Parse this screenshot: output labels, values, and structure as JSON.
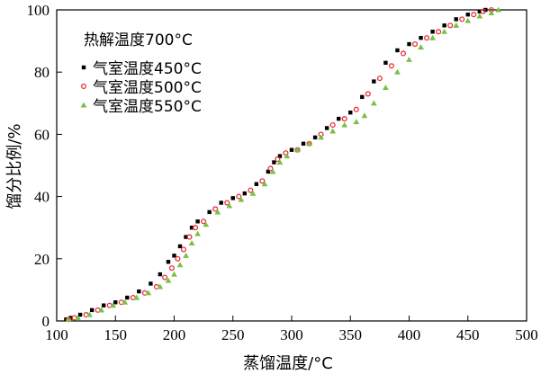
{
  "chart_data": {
    "type": "scatter",
    "title": "",
    "xlabel": "蒸馏温度/°C",
    "ylabel": "馏分比例/%",
    "xlim": [
      100,
      500
    ],
    "ylim": [
      0,
      100
    ],
    "xticks": [
      100,
      150,
      200,
      250,
      300,
      350,
      400,
      450,
      500
    ],
    "yticks": [
      0,
      20,
      40,
      60,
      80,
      100
    ],
    "grid": false,
    "legend_title": "热解温度700°C",
    "legend_position": "top-left",
    "series": [
      {
        "name": "气室温度450°C",
        "marker": "square",
        "color": "#000000",
        "points": [
          [
            108,
            0.5
          ],
          [
            112,
            1
          ],
          [
            120,
            2
          ],
          [
            130,
            3.5
          ],
          [
            140,
            5
          ],
          [
            150,
            6
          ],
          [
            160,
            7.5
          ],
          [
            170,
            9.5
          ],
          [
            180,
            12
          ],
          [
            188,
            15
          ],
          [
            195,
            19
          ],
          [
            200,
            21
          ],
          [
            205,
            24
          ],
          [
            210,
            27
          ],
          [
            215,
            30
          ],
          [
            220,
            32
          ],
          [
            230,
            35
          ],
          [
            240,
            38
          ],
          [
            250,
            39.5
          ],
          [
            260,
            41
          ],
          [
            270,
            44
          ],
          [
            280,
            48
          ],
          [
            285,
            51
          ],
          [
            290,
            53
          ],
          [
            300,
            55
          ],
          [
            310,
            57
          ],
          [
            320,
            59
          ],
          [
            330,
            62
          ],
          [
            340,
            65
          ],
          [
            350,
            67
          ],
          [
            360,
            72
          ],
          [
            370,
            77
          ],
          [
            380,
            83
          ],
          [
            390,
            87
          ],
          [
            400,
            89
          ],
          [
            410,
            91
          ],
          [
            420,
            93
          ],
          [
            430,
            95
          ],
          [
            440,
            97
          ],
          [
            450,
            98.5
          ],
          [
            460,
            99.5
          ],
          [
            465,
            100
          ]
        ]
      },
      {
        "name": "气室温度500°C",
        "marker": "circle",
        "color": "#e8303a",
        "points": [
          [
            110,
            0.5
          ],
          [
            115,
            1
          ],
          [
            125,
            2
          ],
          [
            135,
            3.5
          ],
          [
            145,
            5
          ],
          [
            155,
            6
          ],
          [
            165,
            7.5
          ],
          [
            175,
            9
          ],
          [
            185,
            11
          ],
          [
            192,
            14
          ],
          [
            198,
            17
          ],
          [
            203,
            20
          ],
          [
            208,
            23
          ],
          [
            213,
            27
          ],
          [
            218,
            30
          ],
          [
            225,
            32
          ],
          [
            235,
            36
          ],
          [
            245,
            38
          ],
          [
            255,
            40
          ],
          [
            265,
            42
          ],
          [
            275,
            45
          ],
          [
            282,
            49
          ],
          [
            288,
            52
          ],
          [
            295,
            54
          ],
          [
            305,
            55
          ],
          [
            315,
            57
          ],
          [
            325,
            60
          ],
          [
            335,
            63
          ],
          [
            345,
            65
          ],
          [
            355,
            68
          ],
          [
            365,
            73
          ],
          [
            375,
            78
          ],
          [
            385,
            82
          ],
          [
            395,
            86
          ],
          [
            405,
            89
          ],
          [
            415,
            91
          ],
          [
            425,
            93
          ],
          [
            435,
            95
          ],
          [
            445,
            97
          ],
          [
            455,
            98.5
          ],
          [
            463,
            99.5
          ],
          [
            470,
            100
          ]
        ]
      },
      {
        "name": "气室温度550°C",
        "marker": "triangle",
        "color": "#7ac143",
        "points": [
          [
            110,
            0.5
          ],
          [
            118,
            1
          ],
          [
            128,
            2
          ],
          [
            138,
            3.5
          ],
          [
            148,
            5
          ],
          [
            158,
            6
          ],
          [
            168,
            7.5
          ],
          [
            178,
            9
          ],
          [
            188,
            11
          ],
          [
            195,
            13
          ],
          [
            200,
            15
          ],
          [
            205,
            18
          ],
          [
            210,
            21
          ],
          [
            215,
            25
          ],
          [
            220,
            28
          ],
          [
            227,
            31
          ],
          [
            237,
            35
          ],
          [
            247,
            37
          ],
          [
            257,
            39
          ],
          [
            267,
            41
          ],
          [
            277,
            44
          ],
          [
            284,
            48
          ],
          [
            290,
            51
          ],
          [
            296,
            53
          ],
          [
            305,
            55
          ],
          [
            315,
            57
          ],
          [
            325,
            59
          ],
          [
            335,
            61
          ],
          [
            345,
            63
          ],
          [
            355,
            64
          ],
          [
            362,
            66
          ],
          [
            370,
            70
          ],
          [
            380,
            75
          ],
          [
            390,
            80
          ],
          [
            400,
            84
          ],
          [
            410,
            88
          ],
          [
            420,
            91
          ],
          [
            430,
            93
          ],
          [
            440,
            95
          ],
          [
            450,
            96.5
          ],
          [
            460,
            98
          ],
          [
            470,
            99
          ],
          [
            476,
            100
          ]
        ]
      }
    ]
  }
}
